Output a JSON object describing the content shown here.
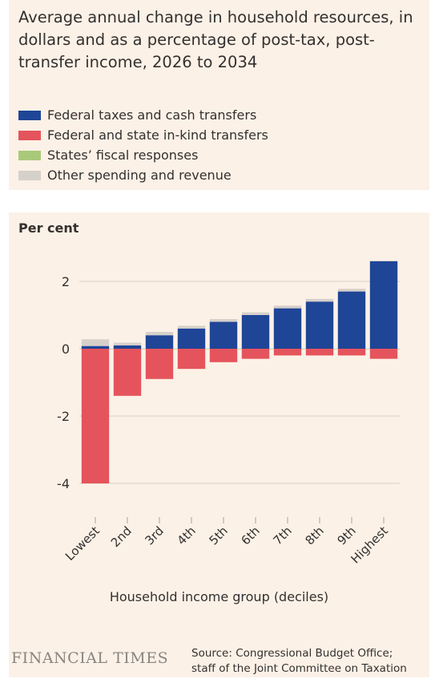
{
  "title": "Average annual change in household resources, in dollars and as a percentage of post-tax, post-transfer income, 2026 to 2034",
  "legend": [
    {
      "label": "Federal taxes and cash transfers",
      "color": "#1f4597"
    },
    {
      "label": "Federal and state in-kind transfers",
      "color": "#e5545c"
    },
    {
      "label": "States’ fiscal responses",
      "color": "#a9c97a"
    },
    {
      "label": "Other spending and revenue",
      "color": "#d6d0ca"
    }
  ],
  "chart_data": {
    "type": "bar",
    "stacked": true,
    "ylabel": "Per cent",
    "xlabel": "Household income group (deciles)",
    "categories": [
      "Lowest",
      "2nd",
      "3rd",
      "4th",
      "5th",
      "6th",
      "7th",
      "8th",
      "9th",
      "Highest"
    ],
    "series": [
      {
        "name": "Federal taxes and cash transfers",
        "color": "#1f4597",
        "values": [
          0.08,
          0.1,
          0.4,
          0.6,
          0.8,
          1.0,
          1.2,
          1.4,
          1.7,
          2.6
        ]
      },
      {
        "name": "Federal and state in-kind transfers",
        "color": "#e5545c",
        "values": [
          -4.0,
          -1.4,
          -0.9,
          -0.6,
          -0.4,
          -0.3,
          -0.2,
          -0.2,
          -0.2,
          -0.3
        ]
      },
      {
        "name": "States’ fiscal responses",
        "color": "#a9c97a",
        "values": [
          0,
          0,
          0,
          0,
          0,
          0,
          0,
          0,
          0,
          0
        ]
      },
      {
        "name": "Other spending and revenue",
        "color": "#d6d0ca",
        "values": [
          0.2,
          0.08,
          0.1,
          0.08,
          0.08,
          0.08,
          0.08,
          0.08,
          0.08,
          0
        ]
      }
    ],
    "yticks": [
      2,
      0,
      -2,
      -4
    ],
    "ytick_labels": [
      "2",
      "0",
      "-2",
      "-4"
    ],
    "ylim": [
      -4.1,
      2.7
    ],
    "grid": true
  },
  "footer": {
    "brand": "FINANCIAL TIMES",
    "source_lines": [
      "Source: Congressional Budget Office;",
      "staff of the Joint Committee on Taxation"
    ]
  }
}
